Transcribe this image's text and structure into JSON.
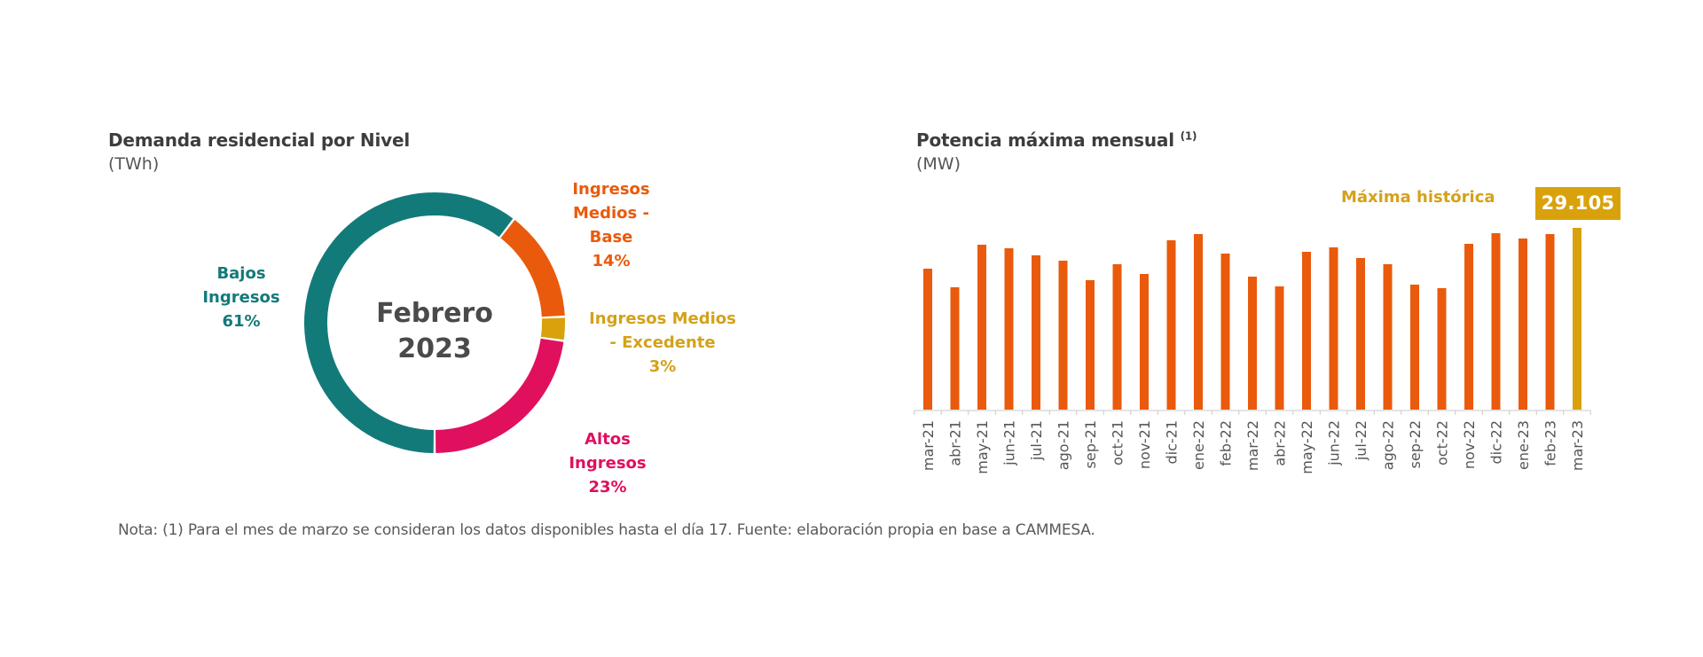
{
  "chart_data": [
    {
      "type": "pie",
      "variant": "donut",
      "title": "Demanda residencial por Nivel",
      "unit": "(TWh)",
      "center_label": [
        "Febrero",
        "2023"
      ],
      "slices": [
        {
          "label_lines": [
            "Bajos",
            "Ingresos"
          ],
          "label": "Bajos Ingresos",
          "value": 61,
          "pct_label": "61%",
          "color": "#137a7a"
        },
        {
          "label_lines": [
            "Ingresos",
            "Medios -",
            "Base"
          ],
          "label": "Ingresos Medios - Base",
          "value": 14,
          "pct_label": "14%",
          "color": "#ea5a0c"
        },
        {
          "label_lines": [
            "Ingresos Medios",
            "- Excedente"
          ],
          "label": "Ingresos Medios - Excedente",
          "value": 3,
          "pct_label": "3%",
          "color": "#d9a20c"
        },
        {
          "label_lines": [
            "Altos",
            "Ingresos"
          ],
          "label": "Altos Ingresos",
          "value": 23,
          "pct_label": "23%",
          "color": "#e0105e"
        }
      ],
      "start_angle": "bottom",
      "direction": "clockwise"
    },
    {
      "type": "bar",
      "title": "Potencia máxima mensual",
      "title_sup": "(1)",
      "unit": "(MW)",
      "xlabel": "",
      "ylabel": "",
      "ylim": [
        0,
        29105
      ],
      "grid": false,
      "categories": [
        "mar-21",
        "abr-21",
        "may-21",
        "jun-21",
        "jul-21",
        "ago-21",
        "sep-21",
        "oct-21",
        "nov-21",
        "dic-21",
        "ene-22",
        "feb-22",
        "mar-22",
        "abr-22",
        "may-22",
        "jun-22",
        "jul-22",
        "ago-22",
        "sep-22",
        "oct-22",
        "nov-22",
        "dic-22",
        "ene-23",
        "feb-23",
        "mar-23"
      ],
      "values": [
        22575,
        19593,
        26408,
        25840,
        24704,
        23853,
        20729,
        23284,
        21723,
        27118,
        28112,
        24988,
        21297,
        19735,
        25272,
        25982,
        24279,
        23284,
        20019,
        19451,
        26550,
        28254,
        27402,
        28112,
        29105
      ],
      "bar_color": "#ea5a0c",
      "highlight_color": "#d9a20c",
      "highlight_index": 24,
      "annotation": {
        "text": "Máxima histórica",
        "value_label": "29.105"
      }
    }
  ],
  "footnote": "Nota: (1) Para el mes de marzo se consideran los datos disponibles hasta el día 17. Fuente: elaboración propia en base a CAMMESA."
}
